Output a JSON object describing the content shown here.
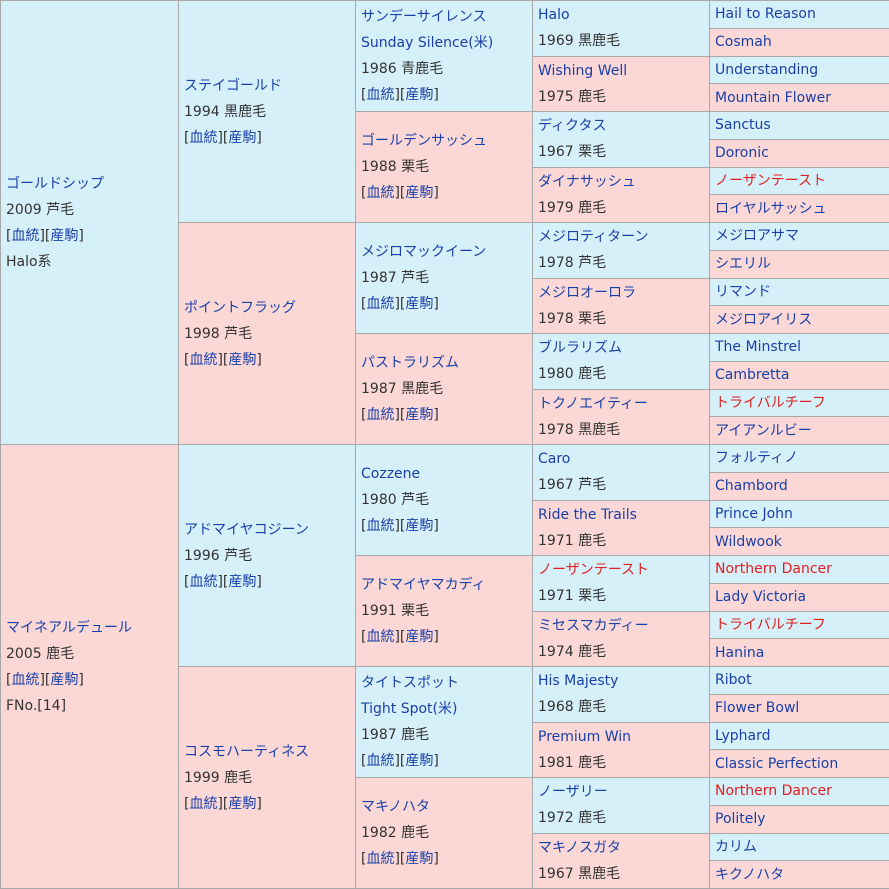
{
  "colors": {
    "male_bg": "#d6f0fa",
    "female_bg": "#fbd8d6",
    "link": "#1a3fa8",
    "inbreed": "#e02020"
  },
  "link_labels": {
    "open": "[",
    "pedigree": "血統",
    "mid": "][",
    "produce": "産駒",
    "close": "]"
  },
  "gen1": [
    {
      "name": "ゴールドシップ",
      "year": "2009 芦毛",
      "note": "Halo系"
    },
    {
      "name": "マイネアルデュール",
      "year": "2005 鹿毛",
      "note": "FNo.[14]"
    }
  ],
  "gen2": [
    {
      "name": "ステイゴールド",
      "year": "1994 黒鹿毛"
    },
    {
      "name": "ポイントフラッグ",
      "year": "1998 芦毛"
    },
    {
      "name": "アドマイヤコジーン",
      "year": "1996 芦毛"
    },
    {
      "name": "コスモハーティネス",
      "year": "1999 鹿毛"
    }
  ],
  "gen3": [
    {
      "name": "サンデーサイレンス",
      "alt": "Sunday Silence(米)",
      "year": "1986 青鹿毛"
    },
    {
      "name": "ゴールデンサッシュ",
      "alt": "",
      "year": "1988 栗毛"
    },
    {
      "name": "メジロマックイーン",
      "alt": "",
      "year": "1987 芦毛"
    },
    {
      "name": "パストラリズム",
      "alt": "",
      "year": "1987 黒鹿毛"
    },
    {
      "name": "Cozzene",
      "alt": "",
      "year": "1980 芦毛"
    },
    {
      "name": "アドマイヤマカディ",
      "alt": "",
      "year": "1991 栗毛"
    },
    {
      "name": "タイトスポット",
      "alt": "Tight Spot(米)",
      "year": "1987 鹿毛"
    },
    {
      "name": "マキノハタ",
      "alt": "",
      "year": "1982 鹿毛"
    }
  ],
  "gen4": [
    {
      "name": "Halo",
      "year": "1969 黒鹿毛"
    },
    {
      "name": "Wishing Well",
      "year": "1975 鹿毛"
    },
    {
      "name": "ディクタス",
      "year": "1967 栗毛"
    },
    {
      "name": "ダイナサッシュ",
      "year": "1979 鹿毛"
    },
    {
      "name": "メジロティターン",
      "year": "1978 芦毛"
    },
    {
      "name": "メジロオーロラ",
      "year": "1978 栗毛"
    },
    {
      "name": "ブルラリズム",
      "year": "1980 鹿毛"
    },
    {
      "name": "トクノエイティー",
      "year": "1978 黒鹿毛"
    },
    {
      "name": "Caro",
      "year": "1967 芦毛"
    },
    {
      "name": "Ride the Trails",
      "year": "1971 鹿毛"
    },
    {
      "name": "ノーザンテースト",
      "year": "1971 栗毛"
    },
    {
      "name": "ミセスマカディー",
      "year": "1974 鹿毛"
    },
    {
      "name": "His Majesty",
      "year": "1968 鹿毛"
    },
    {
      "name": "Premium Win",
      "year": "1981 鹿毛"
    },
    {
      "name": "ノーザリー",
      "year": "1972 鹿毛"
    },
    {
      "name": "マキノスガタ",
      "year": "1967 黒鹿毛"
    }
  ],
  "gen5": [
    "Hail to Reason",
    "Cosmah",
    "Understanding",
    "Mountain Flower",
    "Sanctus",
    "Doronic",
    "ノーザンテースト",
    "ロイヤルサッシュ",
    "メジロアサマ",
    "シエリル",
    "リマンド",
    "メジロアイリス",
    "The Minstrel",
    "Cambretta",
    "トライバルチーフ",
    "アイアンルビー",
    "フォルティノ",
    "Chambord",
    "Prince John",
    "Wildwook",
    "Northern Dancer",
    "Lady Victoria",
    "トライバルチーフ",
    "Hanina",
    "Ribot",
    "Flower Bowl",
    "Lyphard",
    "Classic Perfection",
    "Northern Dancer",
    "Politely",
    "カリム",
    "キクノハタ"
  ]
}
